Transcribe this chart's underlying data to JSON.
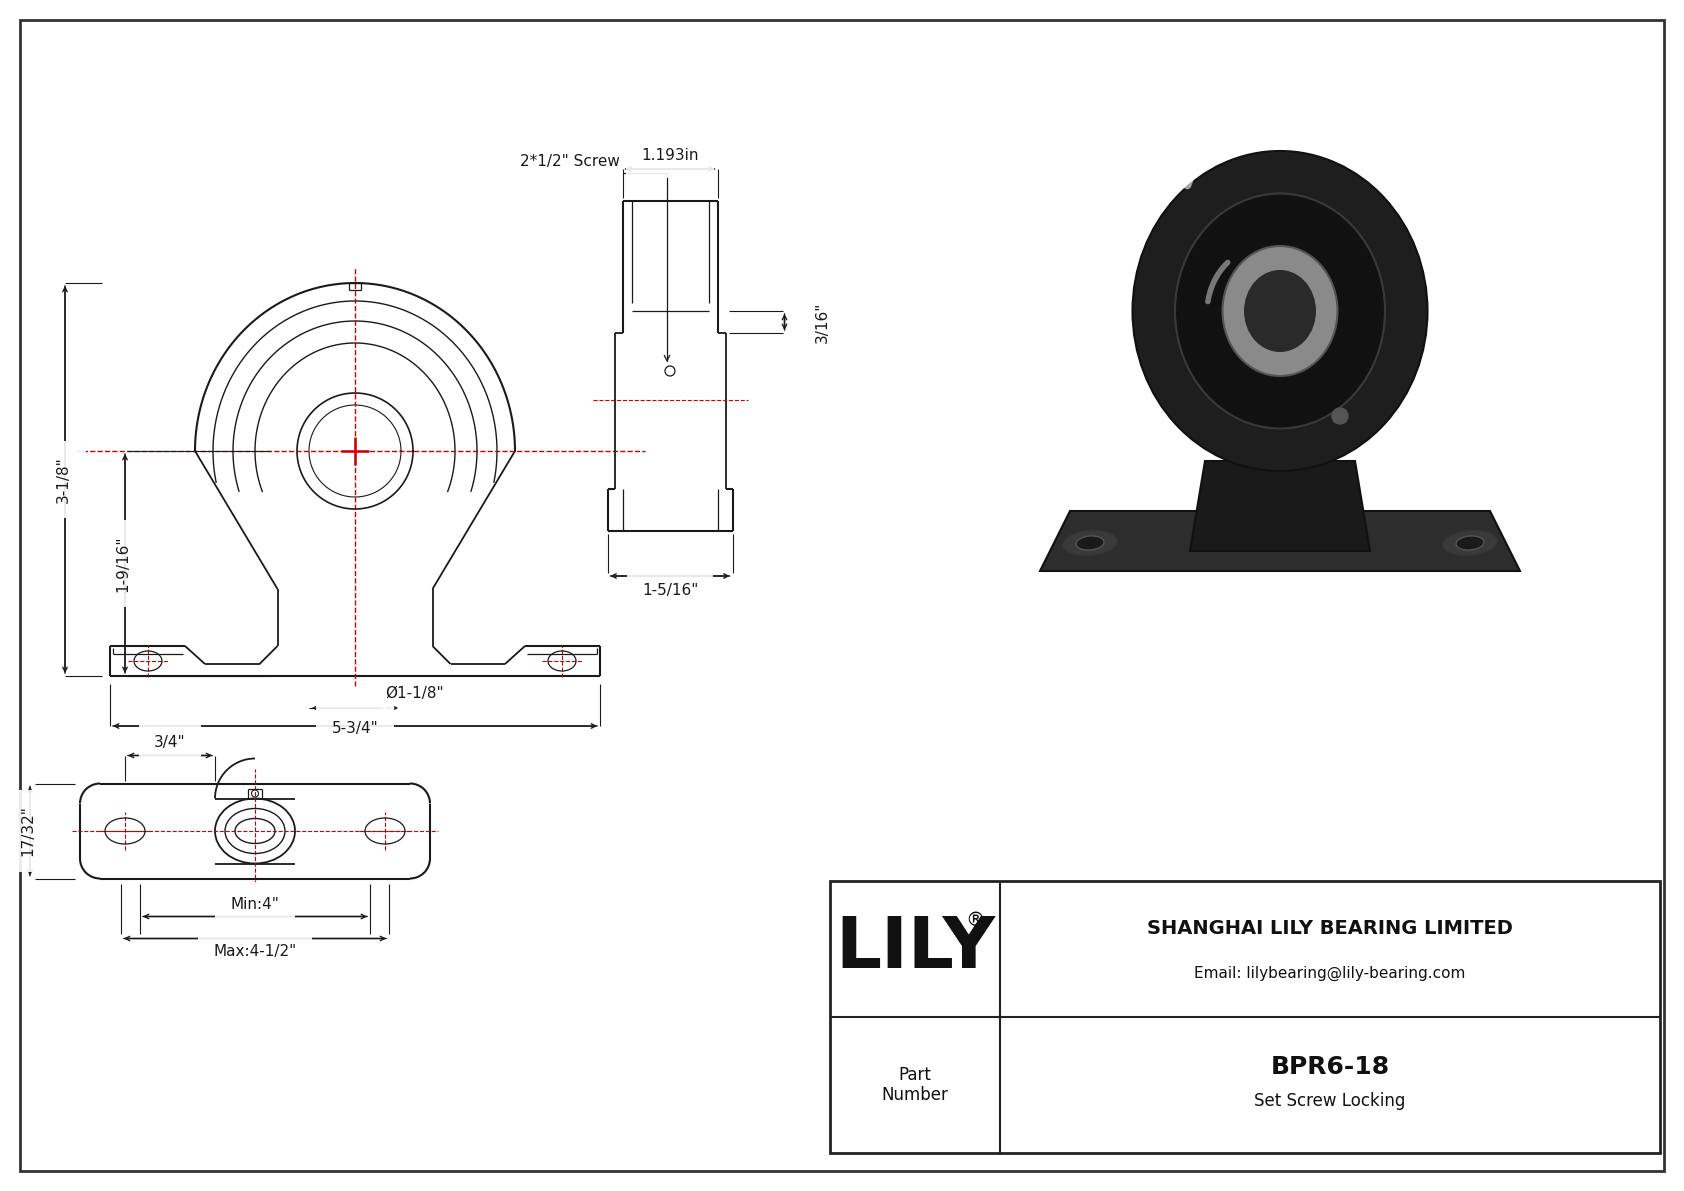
{
  "bg_color": "#ffffff",
  "line_color": "#1a1a1a",
  "dim_color": "#1a1a1a",
  "red_color": "#cc0000",
  "title": "BPR6-18",
  "subtitle": "Set Screw Locking",
  "company": "SHANGHAI LILY BEARING LIMITED",
  "email": "Email: lilybearing@lily-bearing.com",
  "part_label": "Part\nNumber",
  "logo": "LILY",
  "dims": {
    "total_height": "3-1/8\"",
    "shaft_height": "1-9/16\"",
    "total_width": "5-3/4\"",
    "bore_dia": "Ø1-1/8\"",
    "side_width": "1-5/16\"",
    "side_top": "1.193in",
    "side_notch": "3/16\"",
    "screw": "2*1/2\" Screw",
    "bottom_3_4": "3/4\"",
    "bottom_17_32": "17/32\"",
    "bottom_min": "Min:4\"",
    "bottom_max": "Max:4-1/2\""
  }
}
